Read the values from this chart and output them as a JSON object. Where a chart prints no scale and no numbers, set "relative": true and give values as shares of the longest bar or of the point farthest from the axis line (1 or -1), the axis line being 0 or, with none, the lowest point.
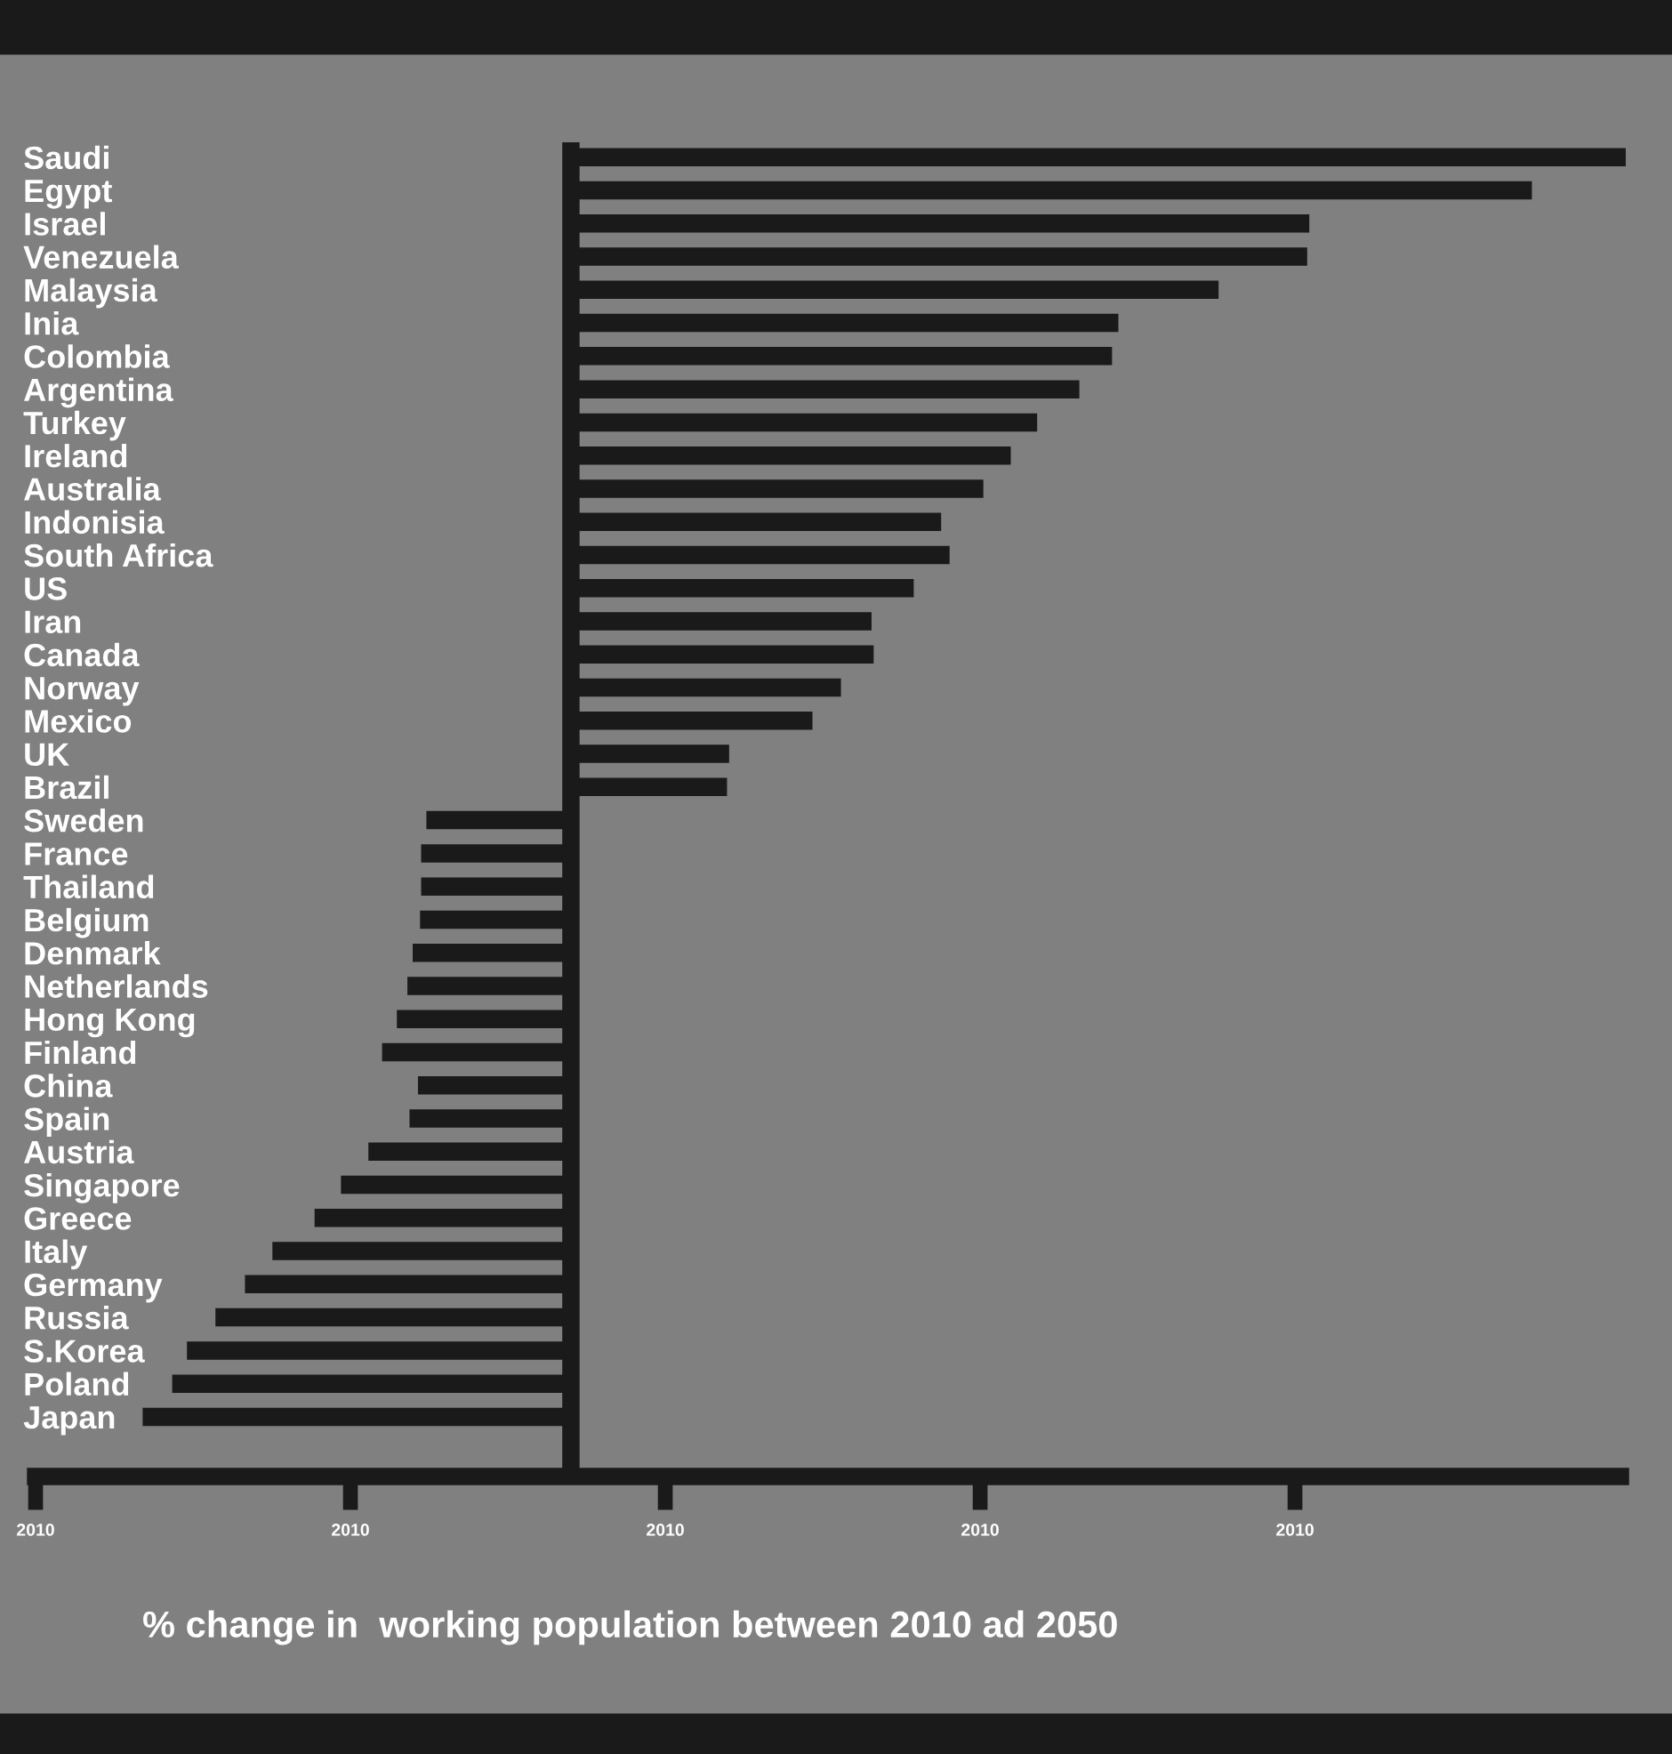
{
  "chart_data": {
    "type": "bar",
    "orientation": "horizontal",
    "relative": true,
    "title": "% change in  working population between 2010 ad 2050",
    "categories": [
      "Saudi",
      "Egypt",
      "Israel",
      "Venezuela",
      "Malaysia",
      "Inia",
      "Colombia",
      "Argentina",
      "Turkey",
      "Ireland",
      "Australia",
      "Indonisia",
      "South Africa",
      "US",
      "Iran",
      "Canada",
      "Norway",
      "Mexico",
      "UK",
      "Brazil",
      "Sweden",
      "France",
      "Thailand",
      "Belgium",
      "Denmark",
      "Netherlands",
      "Hong Kong",
      "Finland",
      "China",
      "Spain",
      "Austria",
      "Singapore",
      "Greece",
      "Italy",
      "Germany",
      "Russia",
      "S.Korea",
      "Poland",
      "Japan"
    ],
    "values": [
      1.0,
      0.911,
      0.7,
      0.698,
      0.614,
      0.519,
      0.513,
      0.482,
      0.442,
      0.417,
      0.391,
      0.351,
      0.359,
      0.325,
      0.285,
      0.287,
      0.256,
      0.229,
      0.15,
      0.148,
      -0.137,
      -0.142,
      -0.142,
      -0.143,
      -0.15,
      -0.155,
      -0.165,
      -0.179,
      -0.145,
      -0.153,
      -0.192,
      -0.218,
      -0.243,
      -0.283,
      -0.309,
      -0.337,
      -0.364,
      -0.378,
      -0.406
    ],
    "color": "#1a1a1a",
    "annotations": [
      "2010",
      "2010",
      "2010",
      "2010",
      "2010"
    ],
    "grid": false,
    "legend": false
  }
}
